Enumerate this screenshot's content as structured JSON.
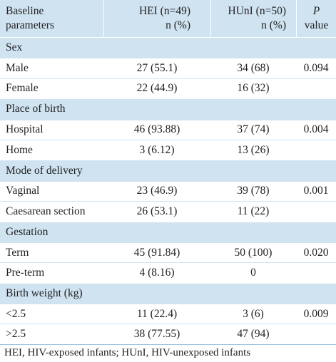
{
  "table": {
    "header": [
      [
        "Baseline",
        "parameters"
      ],
      [
        "HEI (n=49)",
        "n (%)"
      ],
      [
        "HUnI (n=50)",
        "n (%)"
      ],
      [
        "P",
        "value"
      ]
    ],
    "sections": [
      {
        "title": "Sex",
        "rows": [
          [
            "Male",
            "27 (55.1)",
            "34 (68)",
            "0.094"
          ],
          [
            "Female",
            "22 (44.9)",
            "16 (32)"
          ]
        ]
      },
      {
        "title": "Place of birth",
        "rows": [
          [
            "Hospital",
            "46 (93.88)",
            "37 (74)",
            "0.004"
          ],
          [
            "Home",
            "3 (6.12)",
            "13 (26)"
          ]
        ]
      },
      {
        "title": "Mode of delivery",
        "rows": [
          [
            "Vaginal",
            "23 (46.9)",
            "39 (78)",
            "0.001"
          ],
          [
            "Caesarean section",
            "26 (53.1)",
            "11 (22)"
          ]
        ]
      },
      {
        "title": "Gestation",
        "rows": [
          [
            "Term",
            "45 (91.84)",
            "50 (100)",
            "0.020"
          ],
          [
            "Pre-term",
            "4 (8.16)",
            "0"
          ]
        ]
      },
      {
        "title": "Birth weight (kg)",
        "rows": [
          [
            "<2.5",
            "11 (22.4)",
            "3 (6)",
            "0.009"
          ],
          [
            ">2.5",
            "38 (77.55)",
            "47 (94)"
          ]
        ]
      }
    ],
    "footnote": "HEI, HIV-exposed infants; HUnI, HIV-unexposed infants"
  }
}
